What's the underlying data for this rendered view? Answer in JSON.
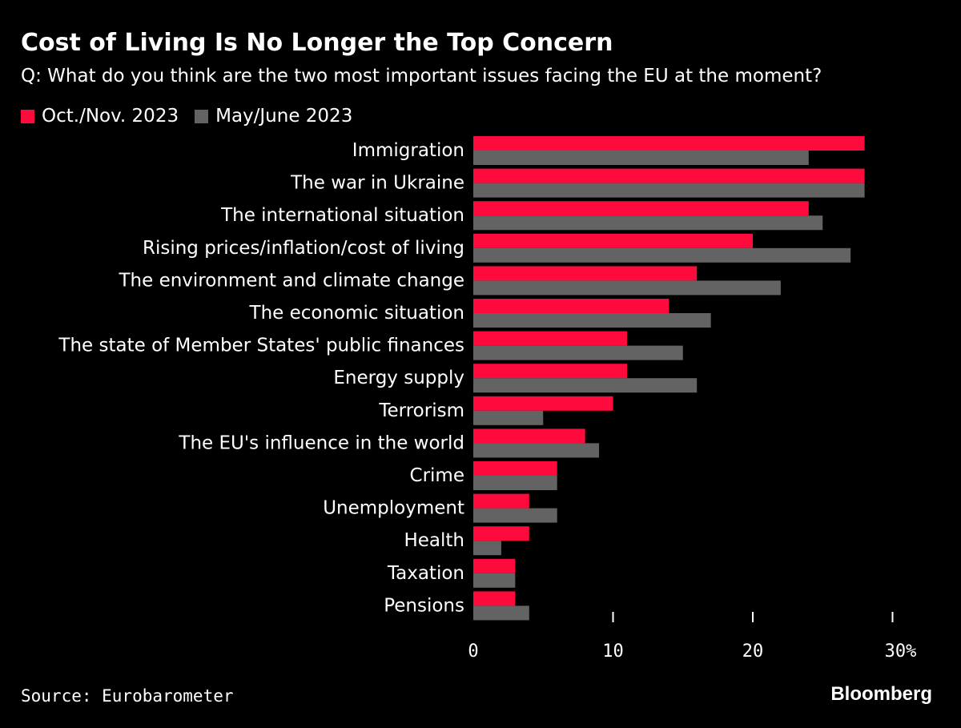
{
  "header": {
    "title": "Cost of Living Is No Longer the Top Concern",
    "subtitle": "Q: What do you think are the two most important issues facing the EU at the moment?"
  },
  "footer": {
    "source": "Source: Eurobarometer",
    "brand": "Bloomberg"
  },
  "chart_data": {
    "type": "bar",
    "orientation": "horizontal",
    "title": "Cost of Living Is No Longer the Top Concern",
    "subtitle": "Q: What do you think are the two most important issues facing the EU at the moment?",
    "categories": [
      "Immigration",
      "The war in Ukraine",
      "The international situation",
      "Rising prices/inflation/cost of living",
      "The environment and climate change",
      "The economic situation",
      "The state of Member States' public finances",
      "Energy supply",
      "Terrorism",
      "The EU's influence in the world",
      "Crime",
      "Unemployment",
      "Health",
      "Taxation",
      "Pensions"
    ],
    "series": [
      {
        "name": "Oct./Nov. 2023",
        "color": "#ff0a3c",
        "values": [
          28,
          28,
          24,
          20,
          16,
          14,
          11,
          11,
          10,
          8,
          6,
          4,
          4,
          3,
          3
        ]
      },
      {
        "name": "May/June 2023",
        "color": "#636363",
        "values": [
          24,
          28,
          25,
          27,
          22,
          17,
          15,
          16,
          5,
          9,
          6,
          6,
          2,
          3,
          4
        ]
      }
    ],
    "xlim": [
      0,
      30
    ],
    "xticks": [
      0,
      10,
      20,
      30
    ],
    "xtick_labels": [
      "0",
      "10",
      "20",
      "30%"
    ],
    "legend_position": "top-left",
    "grid": false
  }
}
